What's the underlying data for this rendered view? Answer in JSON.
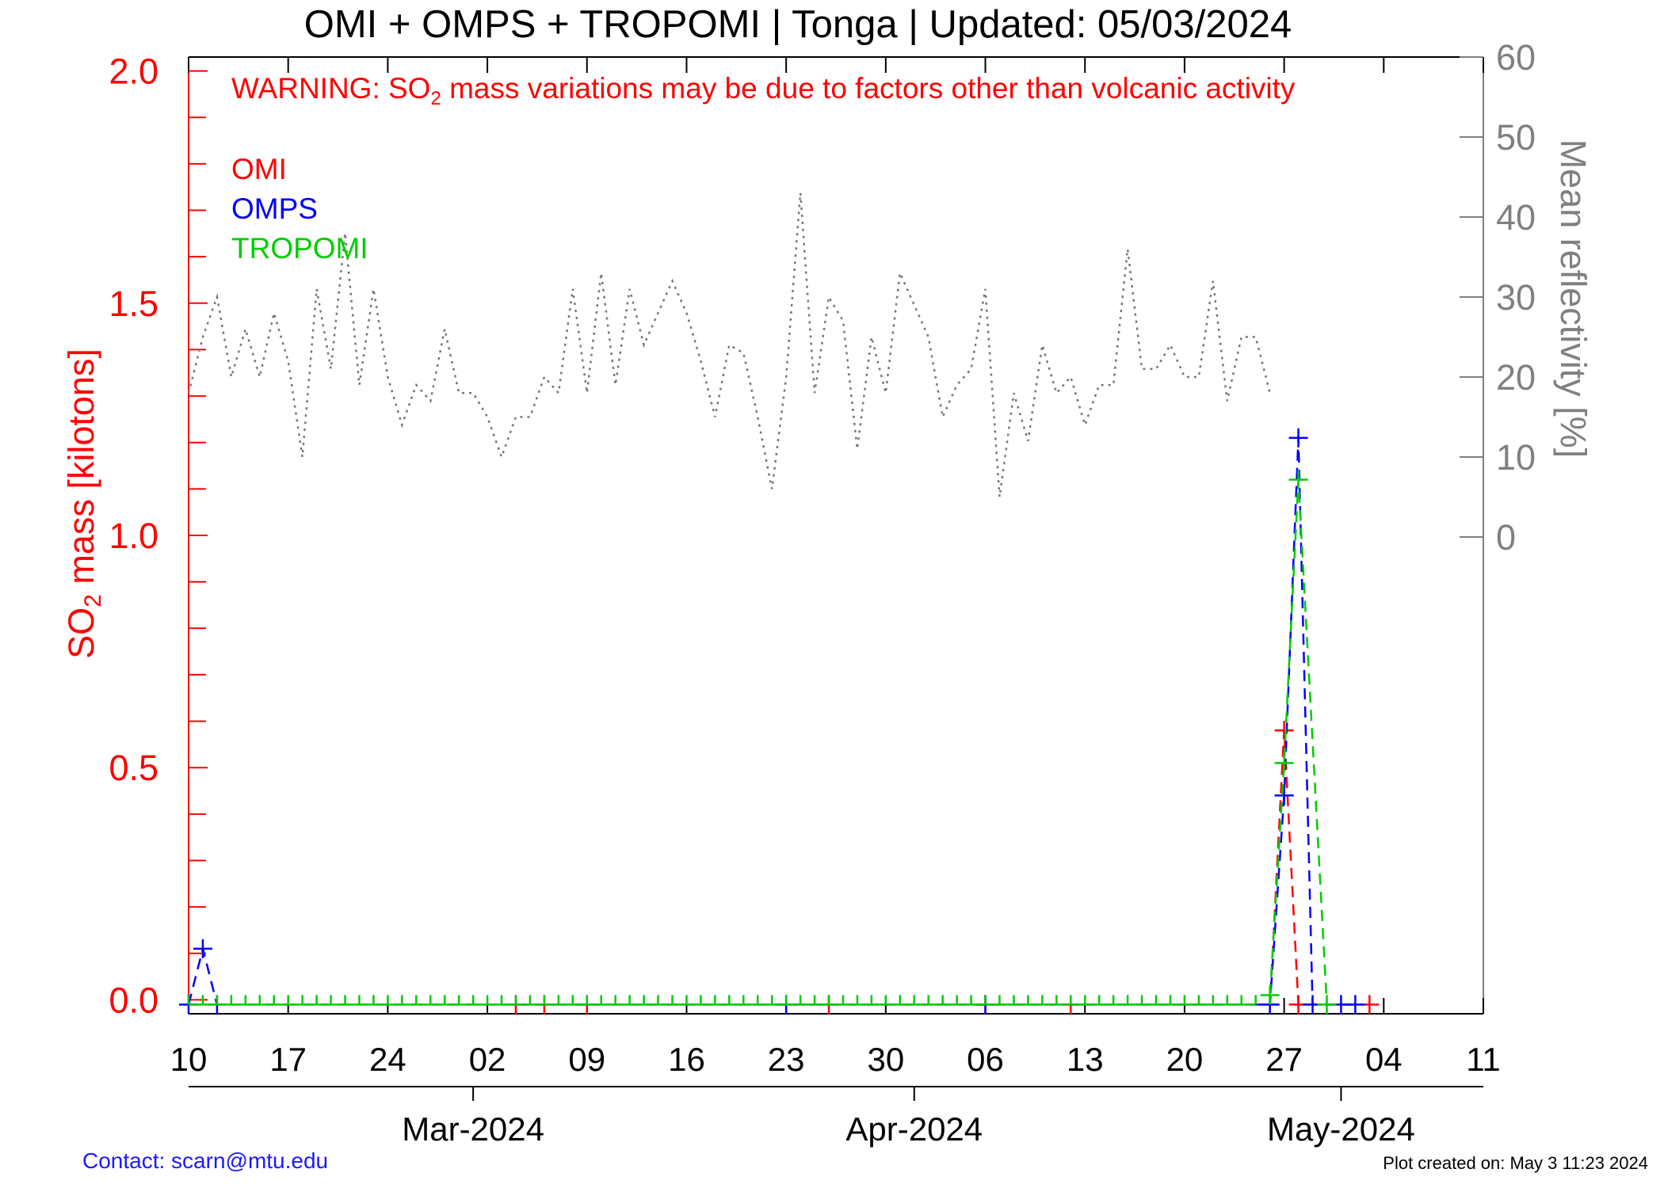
{
  "chart_data": {
    "type": "line",
    "title": "OMI + OMPS + TROPOMI | Tonga | Updated: 05/03/2024",
    "warning": {
      "prefix": "WARNING: SO",
      "sub": "2",
      "suffix": " mass variations may be due to factors other than volcanic activity"
    },
    "ylabel_left": {
      "prefix": "SO",
      "sub": "2",
      "suffix": " mass [kilotons]"
    },
    "ylabel_right": "Mean reflectivity [%]",
    "x_start": "2024-02-10",
    "x_end": "2024-05-11",
    "ylim_left": [
      -0.03,
      2.03
    ],
    "ylim_right": [
      0,
      60
    ],
    "left_ticks": [
      "0.0",
      "0.5",
      "1.0",
      "1.5",
      "2.0"
    ],
    "right_ticks": [
      "0",
      "10",
      "20",
      "30",
      "40",
      "50",
      "60"
    ],
    "x_tick_labels": [
      {
        "date": "2024-02-10",
        "label": "10"
      },
      {
        "date": "2024-02-17",
        "label": "17"
      },
      {
        "date": "2024-02-24",
        "label": "24"
      },
      {
        "date": "2024-03-02",
        "label": "02"
      },
      {
        "date": "2024-03-09",
        "label": "09"
      },
      {
        "date": "2024-03-16",
        "label": "16"
      },
      {
        "date": "2024-03-23",
        "label": "23"
      },
      {
        "date": "2024-03-30",
        "label": "30"
      },
      {
        "date": "2024-04-06",
        "label": "06"
      },
      {
        "date": "2024-04-13",
        "label": "13"
      },
      {
        "date": "2024-04-20",
        "label": "20"
      },
      {
        "date": "2024-04-27",
        "label": "27"
      },
      {
        "date": "2024-05-04",
        "label": "04"
      },
      {
        "date": "2024-05-11",
        "label": "11"
      }
    ],
    "month_labels": [
      {
        "date": "2024-03-01",
        "label": "Mar-2024"
      },
      {
        "date": "2024-04-01",
        "label": "Apr-2024"
      },
      {
        "date": "2024-05-01",
        "label": "May-2024"
      }
    ],
    "legend": [
      {
        "label": "OMI",
        "color": "#ff0000"
      },
      {
        "label": "OMPS",
        "color": "#0000ff"
      },
      {
        "label": "TROPOMI",
        "color": "#00cc00"
      }
    ],
    "series": [
      {
        "name": "OMI",
        "color": "#ff0000",
        "axis": "left",
        "points": [
          {
            "date": "2024-03-04",
            "value": 0.0
          },
          {
            "date": "2024-03-06",
            "value": 0.0
          },
          {
            "date": "2024-03-09",
            "value": 0.0
          },
          {
            "date": "2024-03-26",
            "value": 0.0
          },
          {
            "date": "2024-04-06",
            "value": 0.0
          },
          {
            "date": "2024-04-12",
            "value": 0.0
          },
          {
            "date": "2024-04-26",
            "value": 0.0
          },
          {
            "date": "2024-04-27",
            "value": 0.58
          },
          {
            "date": "2024-04-28",
            "value": 0.0
          },
          {
            "date": "2024-05-03",
            "value": 0.0
          }
        ]
      },
      {
        "name": "OMPS",
        "color": "#0000ff",
        "axis": "left",
        "points": [
          {
            "date": "2024-02-10",
            "value": 0.0
          },
          {
            "date": "2024-02-11",
            "value": 0.11
          },
          {
            "date": "2024-02-12",
            "value": 0.0
          },
          {
            "date": "2024-03-23",
            "value": 0.0
          },
          {
            "date": "2024-04-06",
            "value": 0.0
          },
          {
            "date": "2024-04-26",
            "value": 0.0
          },
          {
            "date": "2024-04-27",
            "value": 0.44
          },
          {
            "date": "2024-04-28",
            "value": 1.21
          },
          {
            "date": "2024-04-29",
            "value": 0.0
          },
          {
            "date": "2024-05-01",
            "value": 0.0
          },
          {
            "date": "2024-05-02",
            "value": 0.0
          }
        ]
      },
      {
        "name": "TROPOMI",
        "color": "#00cc00",
        "axis": "left",
        "near_zero_daily": [
          "2024-02-10",
          "2024-04-25"
        ],
        "points": [
          {
            "date": "2024-04-26",
            "value": 0.01
          },
          {
            "date": "2024-04-27",
            "value": 0.51
          },
          {
            "date": "2024-04-28",
            "value": 1.12
          },
          {
            "date": "2024-04-30",
            "value": 0.0
          }
        ]
      },
      {
        "name": "Mean reflectivity",
        "color": "#777777",
        "axis": "right",
        "start": "2024-02-10",
        "values": [
          18,
          25,
          30,
          20,
          26,
          20,
          28,
          22,
          10,
          31,
          21,
          38,
          19,
          31,
          20,
          14,
          19,
          17,
          26,
          18,
          18,
          15,
          10,
          15,
          15,
          20,
          18,
          31,
          18,
          33,
          19,
          31,
          24,
          28,
          32,
          28,
          22,
          15,
          24,
          23,
          15,
          6,
          20,
          43,
          18,
          30,
          27,
          11,
          25,
          18,
          33,
          29,
          25,
          15,
          19,
          21,
          31,
          5,
          18,
          12,
          24,
          18,
          20,
          14,
          19,
          19,
          36,
          21,
          21,
          24,
          20,
          20,
          32,
          17,
          25,
          25,
          18
        ]
      }
    ]
  },
  "footer": {
    "contact": "Contact: scarn@mtu.edu",
    "created": "Plot created on: May  3 11:23 2024"
  }
}
